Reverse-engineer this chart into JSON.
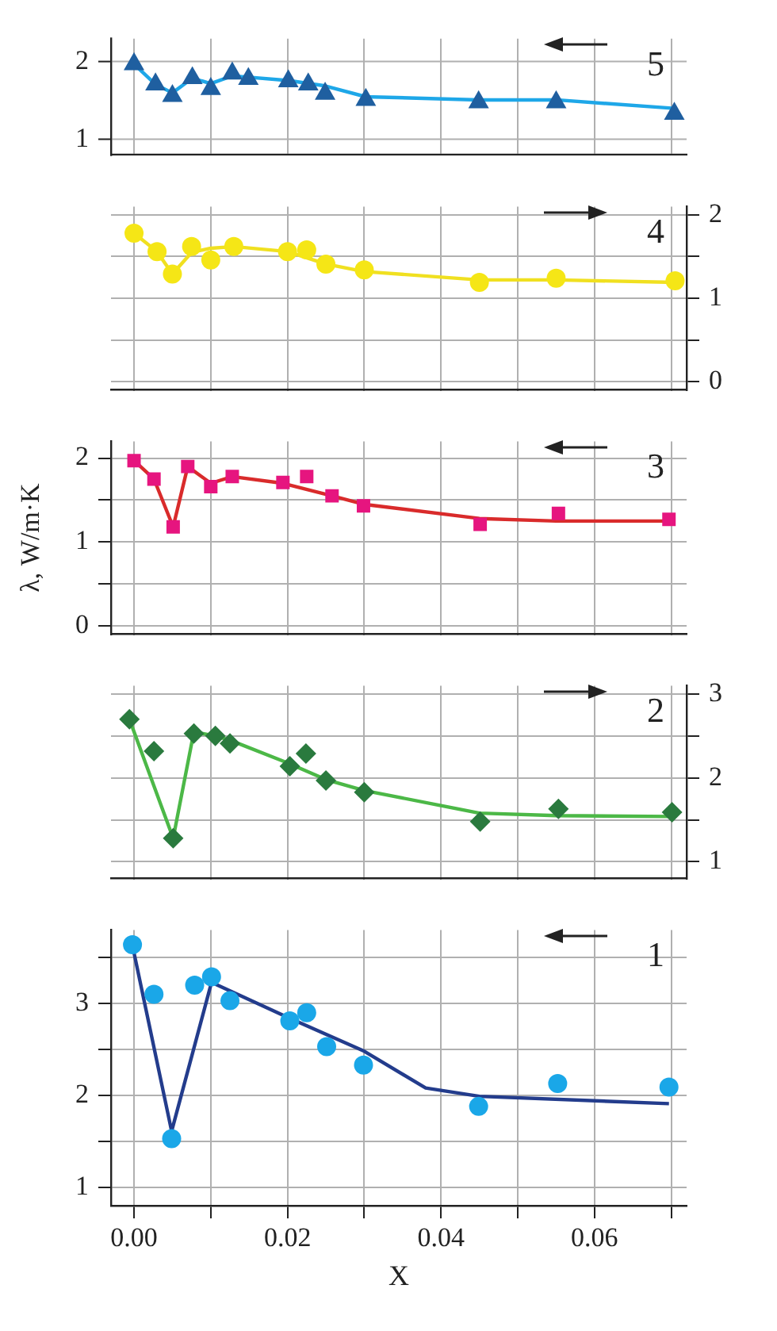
{
  "chart_data": [
    {
      "type": "scatter",
      "annotations": [
        "5"
      ],
      "xlim": [
        -0.003,
        0.072
      ],
      "xticks": [
        0,
        {
          "value": 0.01,
          "label": null
        },
        0.02,
        {
          "value": 0.03,
          "label": null
        },
        0.04,
        {
          "value": 0.05,
          "label": null
        },
        0.06,
        {
          "value": 0.07,
          "label": null
        }
      ],
      "ylim": [
        0.8,
        2.3
      ],
      "yticks": [
        1,
        2
      ],
      "tick_labels": "y",
      "grid": true,
      "legend": false,
      "series": [
        {
          "type": "scatter",
          "color": "#1f5fa0",
          "marker": "triangle",
          "x": [
            0,
            0.0028,
            0.005,
            0.0076,
            0.01,
            0.0128,
            0.0149,
            0.0201,
            0.0227,
            0.0249,
            0.0302,
            0.0449,
            0.055,
            0.0704
          ],
          "values": [
            1.97,
            1.71,
            1.56,
            1.79,
            1.65,
            1.85,
            1.78,
            1.75,
            1.71,
            1.59,
            1.51,
            1.48,
            1.48,
            1.33
          ]
        },
        {
          "type": "line",
          "color": "#1ea7e8",
          "marker": "none",
          "x": [
            0,
            0.0028,
            0.005,
            0.0076,
            0.01,
            0.0128,
            0.0201,
            0.0249,
            0.0302,
            0.0449,
            0.055,
            0.0704
          ],
          "values": [
            1.97,
            1.71,
            1.6,
            1.79,
            1.72,
            1.82,
            1.76,
            1.69,
            1.55,
            1.51,
            1.51,
            1.4
          ]
        }
      ]
    },
    {
      "type": "scatter",
      "annotations": [
        "4"
      ],
      "xlim": [
        -0.003,
        0.072
      ],
      "xticks": [
        0,
        {
          "value": 0.01,
          "label": null
        },
        0.02,
        {
          "value": 0.03,
          "label": null
        },
        0.04,
        {
          "value": 0.05,
          "label": null
        },
        0.06,
        {
          "value": 0.07,
          "label": null
        }
      ],
      "y2lim": [
        -0.1,
        2.1
      ],
      "y2ticks": [
        0,
        {
          "value": 0.5,
          "label": null
        },
        1,
        {
          "value": 1.5,
          "label": null
        },
        2
      ],
      "tick_labels": "y",
      "grid": true,
      "legend": false,
      "series": [
        {
          "type": "scatter",
          "axis": "y2",
          "color": "#f5e616",
          "marker": "circle",
          "x": [
            0,
            0.003,
            0.005,
            0.0075,
            0.01,
            0.013,
            0.02,
            0.0225,
            0.025,
            0.03,
            0.045,
            0.055,
            0.0705
          ],
          "values": [
            1.78,
            1.56,
            1.29,
            1.62,
            1.46,
            1.62,
            1.56,
            1.58,
            1.41,
            1.34,
            1.19,
            1.24,
            1.21
          ]
        },
        {
          "type": "line",
          "axis": "y2",
          "color": "#f0e020",
          "marker": "none",
          "x": [
            0,
            0.003,
            0.005,
            0.0075,
            0.01,
            0.013,
            0.02,
            0.025,
            0.03,
            0.045,
            0.055,
            0.0705
          ],
          "values": [
            1.78,
            1.56,
            1.29,
            1.55,
            1.6,
            1.62,
            1.56,
            1.41,
            1.32,
            1.22,
            1.22,
            1.19
          ]
        }
      ]
    },
    {
      "type": "scatter",
      "annotations": [
        "3"
      ],
      "ylabel": "λ, W/m·K",
      "xlim": [
        -0.003,
        0.072
      ],
      "xticks": [
        0,
        {
          "value": 0.01,
          "label": null
        },
        0.02,
        {
          "value": 0.03,
          "label": null
        },
        0.04,
        {
          "value": 0.05,
          "label": null
        },
        0.06,
        {
          "value": 0.07,
          "label": null
        }
      ],
      "ylim": [
        -0.1,
        2.2
      ],
      "yticks": [
        0,
        {
          "value": 0.5,
          "label": null
        },
        1,
        {
          "value": 1.5,
          "label": null
        },
        2
      ],
      "tick_labels": "y",
      "grid": true,
      "legend": false,
      "series": [
        {
          "type": "scatter",
          "color": "#e6157f",
          "marker": "square",
          "x": [
            0,
            0.0026,
            0.0051,
            0.007,
            0.01,
            0.0128,
            0.0194,
            0.0225,
            0.0258,
            0.0299,
            0.0451,
            0.0553,
            0.0697
          ],
          "values": [
            1.97,
            1.75,
            1.18,
            1.9,
            1.66,
            1.78,
            1.71,
            1.78,
            1.55,
            1.43,
            1.21,
            1.34,
            1.27
          ]
        },
        {
          "type": "line",
          "color": "#d92b2b",
          "marker": "none",
          "x": [
            0,
            0.0026,
            0.0051,
            0.007,
            0.01,
            0.0128,
            0.0194,
            0.0258,
            0.0299,
            0.045,
            0.055,
            0.0697
          ],
          "values": [
            1.97,
            1.75,
            1.18,
            1.9,
            1.7,
            1.78,
            1.7,
            1.55,
            1.45,
            1.28,
            1.25,
            1.25
          ]
        }
      ]
    },
    {
      "type": "scatter",
      "annotations": [
        "2"
      ],
      "xlim": [
        -0.003,
        0.072
      ],
      "xticks": [
        0,
        {
          "value": 0.01,
          "label": null
        },
        0.02,
        {
          "value": 0.03,
          "label": null
        },
        0.04,
        {
          "value": 0.05,
          "label": null
        },
        0.06,
        {
          "value": 0.07,
          "label": null
        }
      ],
      "y2lim": [
        0.8,
        3.1
      ],
      "y2ticks": [
        1,
        {
          "value": 1.5,
          "label": null
        },
        2,
        {
          "value": 2.5,
          "label": null
        },
        3
      ],
      "tick_labels": "y",
      "grid": true,
      "legend": false,
      "series": [
        {
          "type": "scatter",
          "axis": "y2",
          "color": "#2a7a3e",
          "marker": "diamond",
          "x": [
            -0.0006,
            0.0026,
            0.0051,
            0.0078,
            0.0106,
            0.0125,
            0.0203,
            0.0224,
            0.025,
            0.03,
            0.0451,
            0.0553,
            0.0701
          ],
          "values": [
            2.7,
            2.32,
            1.28,
            2.53,
            2.5,
            2.41,
            2.14,
            2.29,
            1.97,
            1.83,
            1.48,
            1.63,
            1.59
          ]
        },
        {
          "type": "line",
          "axis": "y2",
          "color": "#4cb847",
          "marker": "none",
          "x": [
            -0.0006,
            0.0051,
            0.0078,
            0.0106,
            0.0125,
            0.02,
            0.025,
            0.03,
            0.045,
            0.055,
            0.0701
          ],
          "values": [
            2.7,
            1.28,
            2.55,
            2.5,
            2.45,
            2.18,
            1.98,
            1.85,
            1.58,
            1.55,
            1.54
          ]
        }
      ]
    },
    {
      "type": "scatter",
      "annotations": [
        "1"
      ],
      "xlabel": "X",
      "xlim": [
        -0.003,
        0.072
      ],
      "xticks": [
        {
          "value": 0,
          "label": "0.00"
        },
        {
          "value": 0.01,
          "label": null
        },
        {
          "value": 0.02,
          "label": "0.02"
        },
        {
          "value": 0.03,
          "label": null
        },
        {
          "value": 0.04,
          "label": "0.04"
        },
        {
          "value": 0.05,
          "label": null
        },
        {
          "value": 0.06,
          "label": "0.06"
        },
        {
          "value": 0.07,
          "label": null
        }
      ],
      "ylim": [
        0.8,
        3.8
      ],
      "yticks": [
        1,
        {
          "value": 1.5,
          "label": null
        },
        2,
        {
          "value": 2.5,
          "label": null
        },
        3,
        {
          "value": 3.5,
          "label": null
        }
      ],
      "grid": true,
      "legend": false,
      "series": [
        {
          "type": "scatter",
          "color": "#1aa7e8",
          "marker": "circle",
          "x": [
            -0.0002,
            0.0026,
            0.0049,
            0.0079,
            0.0101,
            0.0125,
            0.0203,
            0.0225,
            0.0251,
            0.0299,
            0.0449,
            0.0552,
            0.0697
          ],
          "values": [
            3.64,
            3.1,
            1.53,
            3.2,
            3.29,
            3.03,
            2.81,
            2.9,
            2.53,
            2.33,
            1.88,
            2.13,
            2.09
          ]
        },
        {
          "type": "line",
          "color": "#233c8c",
          "marker": "none",
          "x": [
            -0.0002,
            0.0049,
            0.0101,
            0.02,
            0.03,
            0.038,
            0.045,
            0.0697
          ],
          "values": [
            3.63,
            1.61,
            3.23,
            2.85,
            2.48,
            2.08,
            1.99,
            1.91
          ]
        }
      ]
    }
  ]
}
